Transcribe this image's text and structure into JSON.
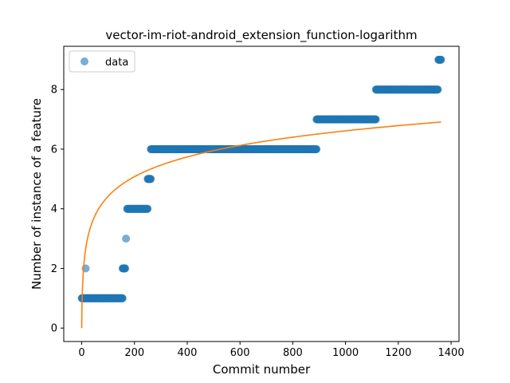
{
  "chart_data": {
    "type": "scatter",
    "title": "vector-im-riot-android_extension_function-logarithm",
    "xlabel": "Commit number",
    "ylabel": "Number of instance of a feature",
    "xlim": [
      -68,
      1430
    ],
    "ylim": [
      -0.45,
      9.45
    ],
    "xticks": [
      0,
      200,
      400,
      600,
      800,
      1000,
      1200,
      1400
    ],
    "yticks": [
      0,
      2,
      4,
      6,
      8
    ],
    "grid": false,
    "legend": {
      "position": "upper-left",
      "entries": [
        "data"
      ]
    },
    "colors": {
      "data": "#1f77b4",
      "fit": "#ff7f0e"
    },
    "series": [
      {
        "name": "data",
        "kind": "scatter",
        "segments": [
          {
            "x_start": 0,
            "x_end": 155,
            "y": 1
          },
          {
            "x_start": 15,
            "x_end": 15,
            "y": 2
          },
          {
            "x_start": 155,
            "x_end": 165,
            "y": 2
          },
          {
            "x_start": 168,
            "x_end": 168,
            "y": 3
          },
          {
            "x_start": 172,
            "x_end": 250,
            "y": 4
          },
          {
            "x_start": 250,
            "x_end": 262,
            "y": 5
          },
          {
            "x_start": 262,
            "x_end": 890,
            "y": 6
          },
          {
            "x_start": 890,
            "x_end": 1115,
            "y": 7
          },
          {
            "x_start": 1115,
            "x_end": 1350,
            "y": 8
          },
          {
            "x_start": 1352,
            "x_end": 1362,
            "y": 9
          }
        ]
      },
      {
        "kind": "line",
        "model": "logarithm",
        "x_start": 0,
        "x_end": 1362,
        "points": [
          [
            0,
            0.0
          ],
          [
            1,
            0.95
          ],
          [
            5,
            2.0
          ],
          [
            10,
            2.5
          ],
          [
            20,
            3.1
          ],
          [
            50,
            3.9
          ],
          [
            100,
            4.6
          ],
          [
            200,
            5.3
          ],
          [
            300,
            5.7
          ],
          [
            400,
            5.95
          ],
          [
            500,
            6.15
          ],
          [
            600,
            6.3
          ],
          [
            700,
            6.42
          ],
          [
            800,
            6.53
          ],
          [
            900,
            6.62
          ],
          [
            1000,
            6.7
          ],
          [
            1100,
            6.77
          ],
          [
            1200,
            6.83
          ],
          [
            1300,
            6.88
          ],
          [
            1362,
            6.91
          ]
        ]
      }
    ]
  }
}
